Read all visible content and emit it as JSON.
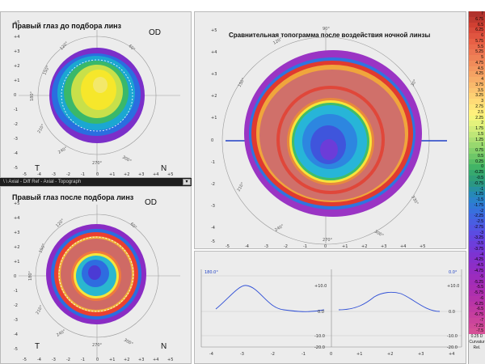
{
  "panels": {
    "top_left": {
      "title": "Правый глаз до подбора линз",
      "eye": "OD",
      "temporal": "T",
      "nasal": "N"
    },
    "bottom_left": {
      "title": "Правый глаз после подбора линз",
      "eye": "OD",
      "temporal": "T",
      "nasal": "N"
    },
    "main": {
      "title": "Сравнительная топограмма после воздействия ночной линзы"
    }
  },
  "strip_text": "\\  \\ Axial  - Diff  Ref  - Axial  - Topograph",
  "angles": {
    "a0": "0°",
    "a30": "30°",
    "a60": "60°",
    "a90": "90°",
    "a120": "120°",
    "a150": "150°",
    "a180": "180°",
    "a210": "210°",
    "a240": "240°",
    "a270": "270°",
    "a300": "300°",
    "a330": "330°"
  },
  "small_axis": [
    "-5",
    "-4",
    "-3",
    "-2",
    "-1",
    "0",
    "+1",
    "+2",
    "+3",
    "+4",
    "+5"
  ],
  "small_axis_y": [
    "+5",
    "+4",
    "+3",
    "+2",
    "+1",
    "0",
    "-1",
    "-2",
    "-3",
    "-4",
    "-5"
  ],
  "main_axis_x": [
    "-5",
    "-4",
    "-3",
    "-2",
    "-1",
    "0",
    "+1",
    "+2",
    "+3",
    "+4",
    "+5"
  ],
  "main_axis_y": [
    "+5",
    "+4",
    "+3",
    "+2",
    "+1",
    "0",
    "-1",
    "-2",
    "-3",
    "-4",
    "-5"
  ],
  "profile": {
    "left_angle": "180.0°",
    "right_angle": "0.0°",
    "y_left": [
      "+10.0",
      "0.0",
      "-10.0",
      "-20.0"
    ],
    "y_right": [
      "+10.0",
      "0.0",
      "-10.0",
      "-20.0"
    ],
    "x_labels": [
      "-4",
      "-3",
      "-2",
      "-1",
      "0",
      "+1",
      "+2",
      "+3",
      "+4"
    ]
  },
  "scale": {
    "values": [
      "7",
      "6.75",
      "6.5",
      "6.25",
      "6",
      "5.75",
      "5.5",
      "5.25",
      "5",
      "4.75",
      "4.5",
      "4.25",
      "4",
      "3.75",
      "3.5",
      "3.25",
      "3",
      "2.75",
      "2.5",
      "2.25",
      "2",
      "1.75",
      "1.5",
      "1.25",
      "1",
      "0.75",
      "0.5",
      "0.25",
      "0",
      "-0.25",
      "-0.5",
      "-0.75",
      "-1",
      "-1.25",
      "-1.5",
      "-1.75",
      "-2",
      "-2.25",
      "-2.5",
      "-2.75",
      "-3",
      "-3.25",
      "-3.5",
      "-3.75",
      "-4",
      "-4.25",
      "-4.5",
      "-4.75",
      "-5",
      "-5.25",
      "-5.5",
      "-5.75",
      "-6",
      "-6.25",
      "-6.5",
      "-6.75",
      "-7",
      "-7.25",
      "-7.5"
    ],
    "colors": [
      "#b1322c",
      "#c0392f",
      "#d04032",
      "#d84a3a",
      "#e05540",
      "#e86045",
      "#ea6b4c",
      "#ec7652",
      "#ee8156",
      "#f18c5a",
      "#f3975f",
      "#f5a263",
      "#f7ad67",
      "#f9b96b",
      "#fbc46f",
      "#fdd073",
      "#ffdb76",
      "#ffe679",
      "#fff07c",
      "#f4f57c",
      "#e4f27c",
      "#d2ec7a",
      "#bfe677",
      "#acdf73",
      "#98d86f",
      "#83d06b",
      "#6ec768",
      "#58be66",
      "#42b466",
      "#36a96f",
      "#2f9f78",
      "#2b9784",
      "#2790a0",
      "#2689b8",
      "#2a82cb",
      "#3079d6",
      "#3870dd",
      "#4067e0",
      "#495ee2",
      "#5255e3",
      "#5b4ce2",
      "#6444df",
      "#6d3edb",
      "#7538d6",
      "#7d33d1",
      "#8530cc",
      "#8c2ec7",
      "#942cc2",
      "#9b2cbd",
      "#a22cb8",
      "#a82db3",
      "#ae2fae",
      "#b432aa",
      "#ba35a6",
      "#c039a2",
      "#c63e9f",
      "#cb449c",
      "#d04a99",
      "#d55197"
    ],
    "footer": [
      "0.25 D",
      "Curvatur",
      "Rel."
    ]
  }
}
